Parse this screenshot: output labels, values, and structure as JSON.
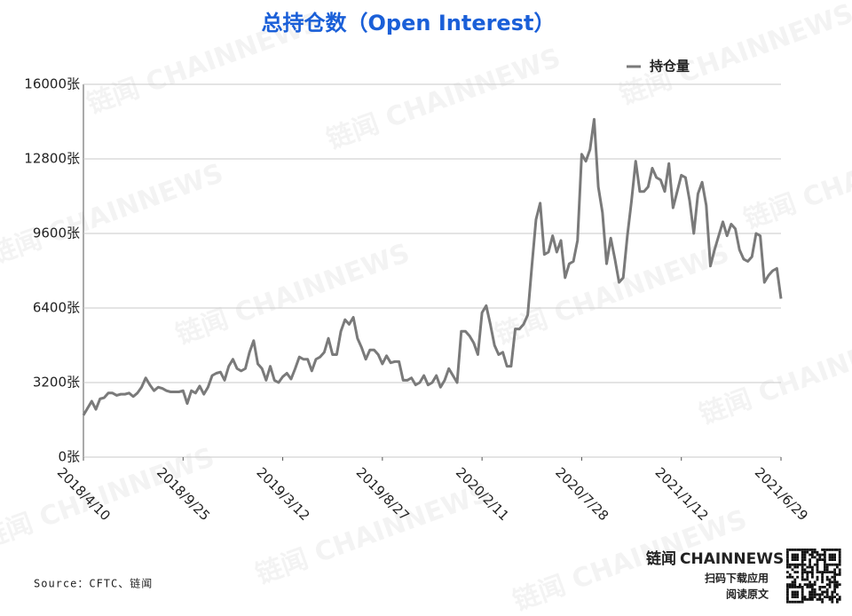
{
  "chart_data": {
    "type": "line",
    "title": "总持仓数（Open Interest）",
    "source": "Source：CFTC、链闻",
    "watermark": "链闻 CHAINNEWS",
    "brand": {
      "logo_cn": "链闻",
      "logo_en": "CHAINNEWS",
      "line1": "扫码下载应用",
      "line2": "阅读原文"
    },
    "categories": [
      "2018/4/10",
      null,
      null,
      null,
      null,
      null,
      null,
      null,
      null,
      null,
      null,
      null,
      null,
      null,
      null,
      null,
      null,
      null,
      null,
      null,
      null,
      null,
      null,
      null,
      "2018/9/25",
      null,
      null,
      null,
      null,
      null,
      null,
      null,
      null,
      null,
      null,
      null,
      null,
      null,
      null,
      null,
      null,
      null,
      null,
      null,
      null,
      null,
      null,
      null,
      "2019/3/12",
      null,
      null,
      null,
      null,
      null,
      null,
      null,
      null,
      null,
      null,
      null,
      null,
      null,
      null,
      null,
      null,
      null,
      null,
      null,
      null,
      null,
      null,
      null,
      "2019/8/27",
      null,
      null,
      null,
      null,
      null,
      null,
      null,
      null,
      null,
      null,
      null,
      null,
      null,
      null,
      null,
      null,
      null,
      null,
      null,
      null,
      null,
      null,
      null,
      "2020/2/11",
      null,
      null,
      null,
      null,
      null,
      null,
      null,
      null,
      null,
      null,
      null,
      null,
      null,
      null,
      null,
      null,
      null,
      null,
      null,
      null,
      null,
      null,
      null,
      "2020/7/28",
      null,
      null,
      null,
      null,
      null,
      null,
      null,
      null,
      null,
      null,
      null,
      null,
      null,
      null,
      null,
      null,
      null,
      null,
      null,
      null,
      null,
      null,
      null,
      "2021/1/12",
      null,
      null,
      null,
      null,
      null,
      null,
      null,
      null,
      null,
      null,
      null,
      null,
      null,
      null,
      null,
      null,
      null,
      null,
      null,
      null,
      null,
      null,
      null,
      "2021/6/29"
    ],
    "series": [
      {
        "name": "持仓量",
        "color": "#7a7a7a",
        "values": [
          1800,
          2100,
          2400,
          2050,
          2500,
          2550,
          2750,
          2750,
          2650,
          2700,
          2700,
          2750,
          2600,
          2750,
          3000,
          3400,
          3100,
          2850,
          3000,
          2950,
          2850,
          2800,
          2800,
          2800,
          2850,
          2300,
          2850,
          2750,
          3050,
          2700,
          3000,
          3500,
          3600,
          3650,
          3300,
          3900,
          4200,
          3800,
          3700,
          3800,
          4500,
          5000,
          4000,
          3800,
          3300,
          3900,
          3300,
          3200,
          3450,
          3600,
          3350,
          3800,
          4300,
          4200,
          4200,
          3700,
          4200,
          4300,
          4500,
          5100,
          4400,
          4400,
          5400,
          5900,
          5700,
          6000,
          5100,
          4700,
          4200,
          4600,
          4600,
          4400,
          4000,
          4350,
          4050,
          4100,
          4100,
          3300,
          3300,
          3400,
          3100,
          3200,
          3500,
          3100,
          3200,
          3500,
          3000,
          3300,
          3800,
          3500,
          3200,
          5400,
          5400,
          5200,
          4900,
          4400,
          6200,
          6500,
          5700,
          4800,
          4400,
          4500,
          3900,
          3900,
          5500,
          5500,
          5700,
          6100,
          8200,
          10200,
          10900,
          8700,
          8800,
          9500,
          8800,
          9300,
          7700,
          8300,
          8400,
          9300,
          13000,
          12700,
          13200,
          14500,
          11600,
          10500,
          8300,
          9400,
          8500,
          7500,
          7700,
          9500,
          11000,
          12700,
          11400,
          11400,
          11600,
          12400,
          12000,
          11900,
          11400,
          12600,
          10700,
          11400,
          12100,
          12000,
          11000,
          9600,
          11300,
          11800,
          10800,
          8200,
          8900,
          9500,
          10100,
          9500,
          10000,
          9800,
          8900,
          8500,
          8400,
          8600,
          9600,
          9500,
          7500,
          7800,
          8000,
          8100,
          6800
        ]
      }
    ],
    "ylim": [
      0,
      16000
    ],
    "yticks": [
      {
        "value": 0,
        "label": "0张"
      },
      {
        "value": 3200,
        "label": "3200张"
      },
      {
        "value": 6400,
        "label": "6400张"
      },
      {
        "value": 9600,
        "label": "9600张"
      },
      {
        "value": 12800,
        "label": "12800张"
      },
      {
        "value": 16000,
        "label": "16000张"
      }
    ],
    "grid": true,
    "legend": "top-right"
  }
}
